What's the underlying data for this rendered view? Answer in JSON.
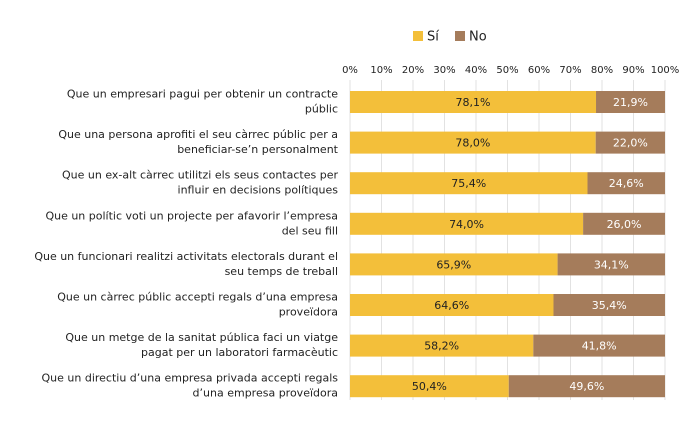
{
  "chart_data": {
    "type": "stacked-bar-horizontal",
    "categories": [
      [
        "Que un empresari pagui per obtenir un contracte",
        "públic"
      ],
      [
        "Que una persona aprofiti el seu càrrec públic per a",
        "beneficiar-se’n personalment"
      ],
      [
        "Que un ex-alt càrrec utilitzi els seus contactes per",
        "influir en decisions polítiques"
      ],
      [
        "Que un polític voti un projecte per afavorir l’empresa",
        "del seu fill"
      ],
      [
        "Que un funcionari realitzi activitats electorals durant el",
        "seu temps de treball"
      ],
      [
        "Que un càrrec públic accepti regals d’una empresa",
        "proveïdora"
      ],
      [
        "Que un metge de la sanitat pública faci un viatge",
        "pagat per un laboratori farmacèutic"
      ],
      [
        "Que un directiu d’una empresa privada accepti regals",
        "d’una empresa proveïdora"
      ]
    ],
    "series": [
      {
        "name": "Sí",
        "color": "#f3bf3a",
        "values": [
          78.1,
          78.0,
          75.4,
          74.0,
          65.9,
          64.6,
          58.2,
          50.4
        ],
        "value_labels": [
          "78,1%",
          "78,0%",
          "75,4%",
          "74,0%",
          "65,9%",
          "64,6%",
          "58,2%",
          "50,4%"
        ]
      },
      {
        "name": "No",
        "color": "#a57c5b",
        "values": [
          21.9,
          22.0,
          24.6,
          26.0,
          34.1,
          35.4,
          41.8,
          49.6
        ],
        "value_labels": [
          "21,9%",
          "22,0%",
          "24,6%",
          "26,0%",
          "34,1%",
          "35,4%",
          "41,8%",
          "49,6%"
        ]
      }
    ],
    "xlim": [
      0,
      100
    ],
    "xticks": [
      {
        "value": 0,
        "label": "0%"
      },
      {
        "value": 10,
        "label": "10%"
      },
      {
        "value": 20,
        "label": "20%"
      },
      {
        "value": 30,
        "label": "30%"
      },
      {
        "value": 40,
        "label": "40%"
      },
      {
        "value": 50,
        "label": "50%"
      },
      {
        "value": 60,
        "label": "60%"
      },
      {
        "value": 70,
        "label": "70%"
      },
      {
        "value": 80,
        "label": "80%"
      },
      {
        "value": 90,
        "label": "90%"
      },
      {
        "value": 100,
        "label": "100%"
      }
    ],
    "grid": true,
    "legend": "top"
  }
}
